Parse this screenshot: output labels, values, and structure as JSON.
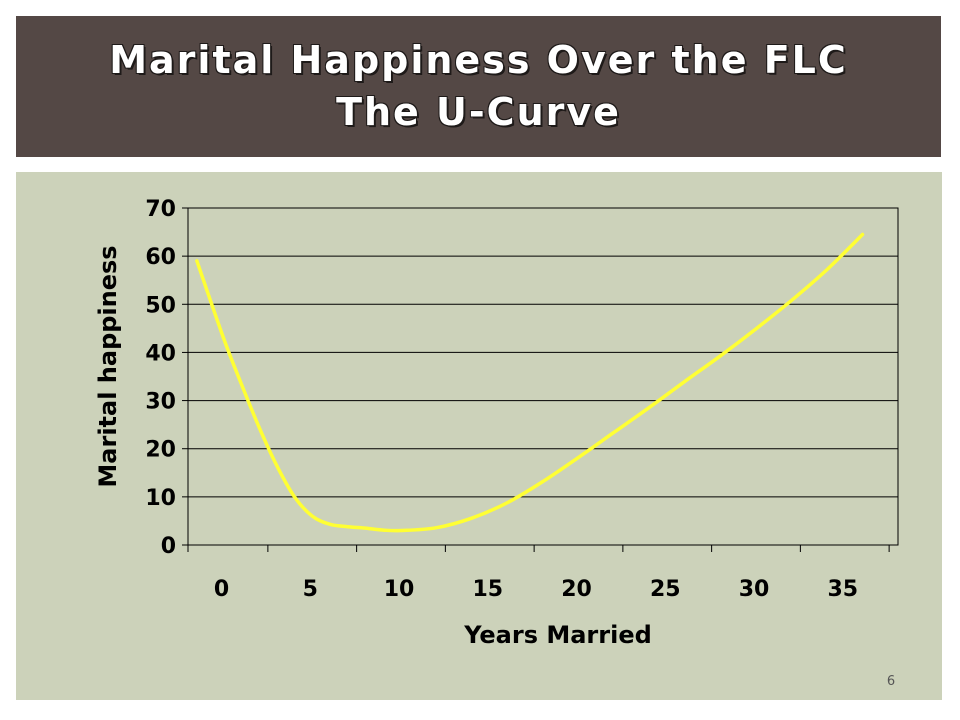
{
  "slide": {
    "title_line1": "Marital Happiness Over the FLC",
    "title_line2": "The U-Curve",
    "slide_number": "6"
  },
  "colors": {
    "title_bar": "#544845",
    "panel_background": "#ccd2ba",
    "plot_background": "#ccd2ba",
    "curve": "#ffff33",
    "axis": "#000000",
    "gridline": "#000000"
  },
  "chart_data": {
    "type": "line",
    "title": "",
    "xlabel": "Years Married",
    "ylabel": "Marital happiness",
    "xlim": [
      -2,
      38
    ],
    "ylim": [
      0,
      70
    ],
    "x_ticks": [
      0,
      5,
      10,
      15,
      20,
      25,
      30,
      35
    ],
    "x_tick_labels": [
      "0",
      "5",
      "10",
      "15",
      "20",
      "25",
      "30",
      "35"
    ],
    "y_ticks": [
      0,
      10,
      20,
      30,
      40,
      50,
      60,
      70
    ],
    "y_tick_labels": [
      "0",
      "10",
      "20",
      "30",
      "40",
      "50",
      "60",
      "70"
    ],
    "grid": "horizontal",
    "legend": "none",
    "smooth": true,
    "series": [
      {
        "x": [
          -1.5,
          0,
          1,
          2,
          3,
          4,
          5,
          6,
          7,
          8,
          9,
          10,
          12,
          14,
          16,
          18,
          20,
          22,
          24,
          26,
          28,
          30,
          32,
          34,
          36
        ],
        "values": [
          59,
          43,
          33.5,
          24.5,
          16.5,
          10,
          6,
          4.3,
          3.8,
          3.5,
          3.1,
          3,
          3.6,
          5.6,
          8.8,
          13.2,
          18.2,
          23.4,
          28.6,
          34,
          39.3,
          44.9,
          50.8,
          57.2,
          64.5
        ]
      }
    ]
  }
}
